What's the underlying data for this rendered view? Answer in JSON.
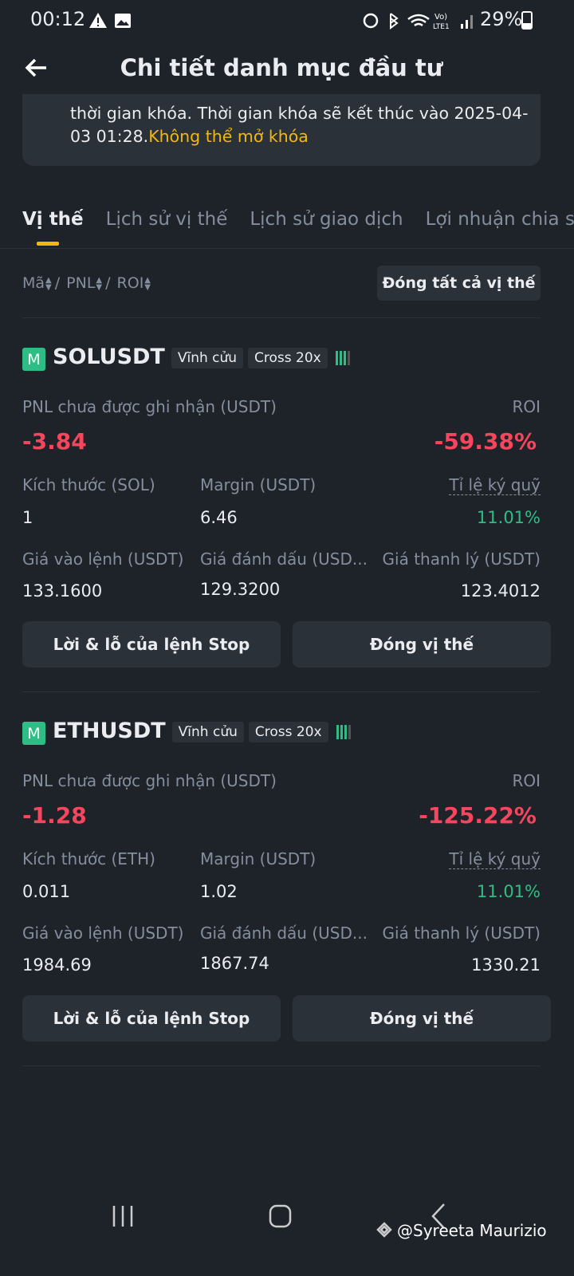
{
  "status_bar": {
    "time": "00:12",
    "battery": "29%"
  },
  "header": {
    "title": "Chi tiết danh mục đầu tư"
  },
  "notice": {
    "text": "thời gian khóa. Thời gian khóa sẽ kết thúc vào 2025-04-03 01:28.",
    "link": "Không thể mở khóa"
  },
  "tabs": [
    "Vị thế",
    "Lịch sử vị thế",
    "Lịch sử giao dịch",
    "Lợi nhuận chia sẻ"
  ],
  "sort": {
    "labels": [
      "Mã",
      "PNL",
      "ROI"
    ],
    "close_all": "Đóng tất cả vị thế"
  },
  "positions": [
    {
      "badge": "M",
      "symbol": "SOLUSDT",
      "contract": "Vĩnh cửu",
      "leverage": "Cross 20x",
      "pnl_label": "PNL chưa được ghi nhận (USDT)",
      "pnl": "-3.84",
      "roi_label": "ROI",
      "roi": "-59.38%",
      "size_label": "Kích thước (SOL)",
      "size": "1",
      "margin_label": "Margin (USDT)",
      "margin": "6.46",
      "ratio_label": "Tỉ lệ ký quỹ",
      "ratio": "11.01%",
      "entry_label": "Giá vào lệnh (USDT)",
      "entry": "133.1600",
      "mark_label": "Giá đánh dấu (USD...",
      "mark": "129.3200",
      "liq_label": "Giá thanh lý (USDT)",
      "liq": "123.4012",
      "buttons": [
        "Lời & lỗ của lệnh Stop",
        "Đóng vị thế"
      ]
    },
    {
      "badge": "M",
      "symbol": "ETHUSDT",
      "contract": "Vĩnh cửu",
      "leverage": "Cross 20x",
      "pnl_label": "PNL chưa được ghi nhận (USDT)",
      "pnl": "-1.28",
      "roi_label": "ROI",
      "roi": "-125.22%",
      "size_label": "Kích thước (ETH)",
      "size": "0.011",
      "margin_label": "Margin (USDT)",
      "margin": "1.02",
      "ratio_label": "Tỉ lệ ký quỹ",
      "ratio": "11.01%",
      "entry_label": "Giá vào lệnh (USDT)",
      "entry": "1984.69",
      "mark_label": "Giá đánh dấu (USD...",
      "mark": "1867.74",
      "liq_label": "Giá thanh lý (USDT)",
      "liq": "1330.21",
      "buttons": [
        "Lời & lỗ của lệnh Stop",
        "Đóng vị thế"
      ]
    }
  ],
  "watermark": "@Syreeta Maurizio"
}
